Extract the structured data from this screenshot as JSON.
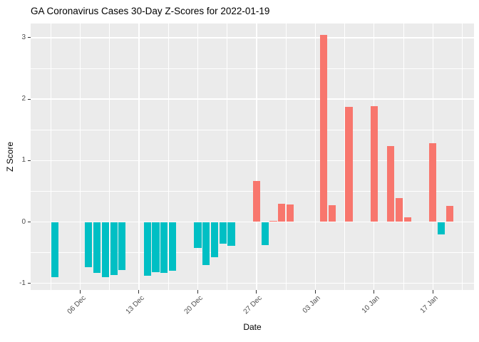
{
  "title": "GA Coronavirus Cases 30-Day Z-Scores for 2022-01-19",
  "chart_data": {
    "type": "bar",
    "title": "GA Coronavirus Cases 30-Day Z-Scores for 2022-01-19",
    "xlabel": "Date",
    "ylabel": "Z Score",
    "legend_position": "none",
    "grid": true,
    "y_ticks": [
      -1,
      0,
      1,
      2,
      3
    ],
    "ylim": [
      -1.11,
      3.23
    ],
    "x_ticks": [
      {
        "date": "2021-12-06",
        "label": "06 Dec"
      },
      {
        "date": "2021-12-13",
        "label": "13 Dec"
      },
      {
        "date": "2021-12-20",
        "label": "20 Dec"
      },
      {
        "date": "2021-12-27",
        "label": "27 Dec"
      },
      {
        "date": "2022-01-03",
        "label": "03 Jan"
      },
      {
        "date": "2022-01-10",
        "label": "10 Jan"
      },
      {
        "date": "2022-01-17",
        "label": "17 Jan"
      }
    ],
    "colors": {
      "positive_bar": "#F8766D",
      "negative_bar": "#00BFC4",
      "panel_background": "#EBEBEB",
      "gridline": "#FFFFFF",
      "axis_text": "#4D4D4D",
      "tick_mark": "#333333",
      "title_text": "#000000"
    },
    "bars": [
      {
        "date": "2021-12-03",
        "value": -0.9
      },
      {
        "date": "2021-12-07",
        "value": -0.74
      },
      {
        "date": "2021-12-08",
        "value": -0.83
      },
      {
        "date": "2021-12-09",
        "value": -0.9
      },
      {
        "date": "2021-12-10",
        "value": -0.86
      },
      {
        "date": "2021-12-11",
        "value": -0.78
      },
      {
        "date": "2021-12-14",
        "value": -0.88
      },
      {
        "date": "2021-12-15",
        "value": -0.82
      },
      {
        "date": "2021-12-16",
        "value": -0.83
      },
      {
        "date": "2021-12-17",
        "value": -0.8
      },
      {
        "date": "2021-12-20",
        "value": -0.42
      },
      {
        "date": "2021-12-21",
        "value": -0.7
      },
      {
        "date": "2021-12-22",
        "value": -0.57
      },
      {
        "date": "2021-12-23",
        "value": -0.35
      },
      {
        "date": "2021-12-24",
        "value": -0.39
      },
      {
        "date": "2021-12-27",
        "value": 0.67
      },
      {
        "date": "2021-12-28",
        "value": -0.38
      },
      {
        "date": "2021-12-29",
        "value": 0.02
      },
      {
        "date": "2021-12-30",
        "value": 0.3
      },
      {
        "date": "2021-12-31",
        "value": 0.28
      },
      {
        "date": "2022-01-04",
        "value": 3.05
      },
      {
        "date": "2022-01-05",
        "value": 0.27
      },
      {
        "date": "2022-01-07",
        "value": 1.87
      },
      {
        "date": "2022-01-10",
        "value": 1.88
      },
      {
        "date": "2022-01-12",
        "value": 1.24
      },
      {
        "date": "2022-01-13",
        "value": 0.39
      },
      {
        "date": "2022-01-14",
        "value": 0.08
      },
      {
        "date": "2022-01-17",
        "value": 1.28
      },
      {
        "date": "2022-01-18",
        "value": -0.2
      },
      {
        "date": "2022-01-19",
        "value": 0.26
      }
    ]
  }
}
